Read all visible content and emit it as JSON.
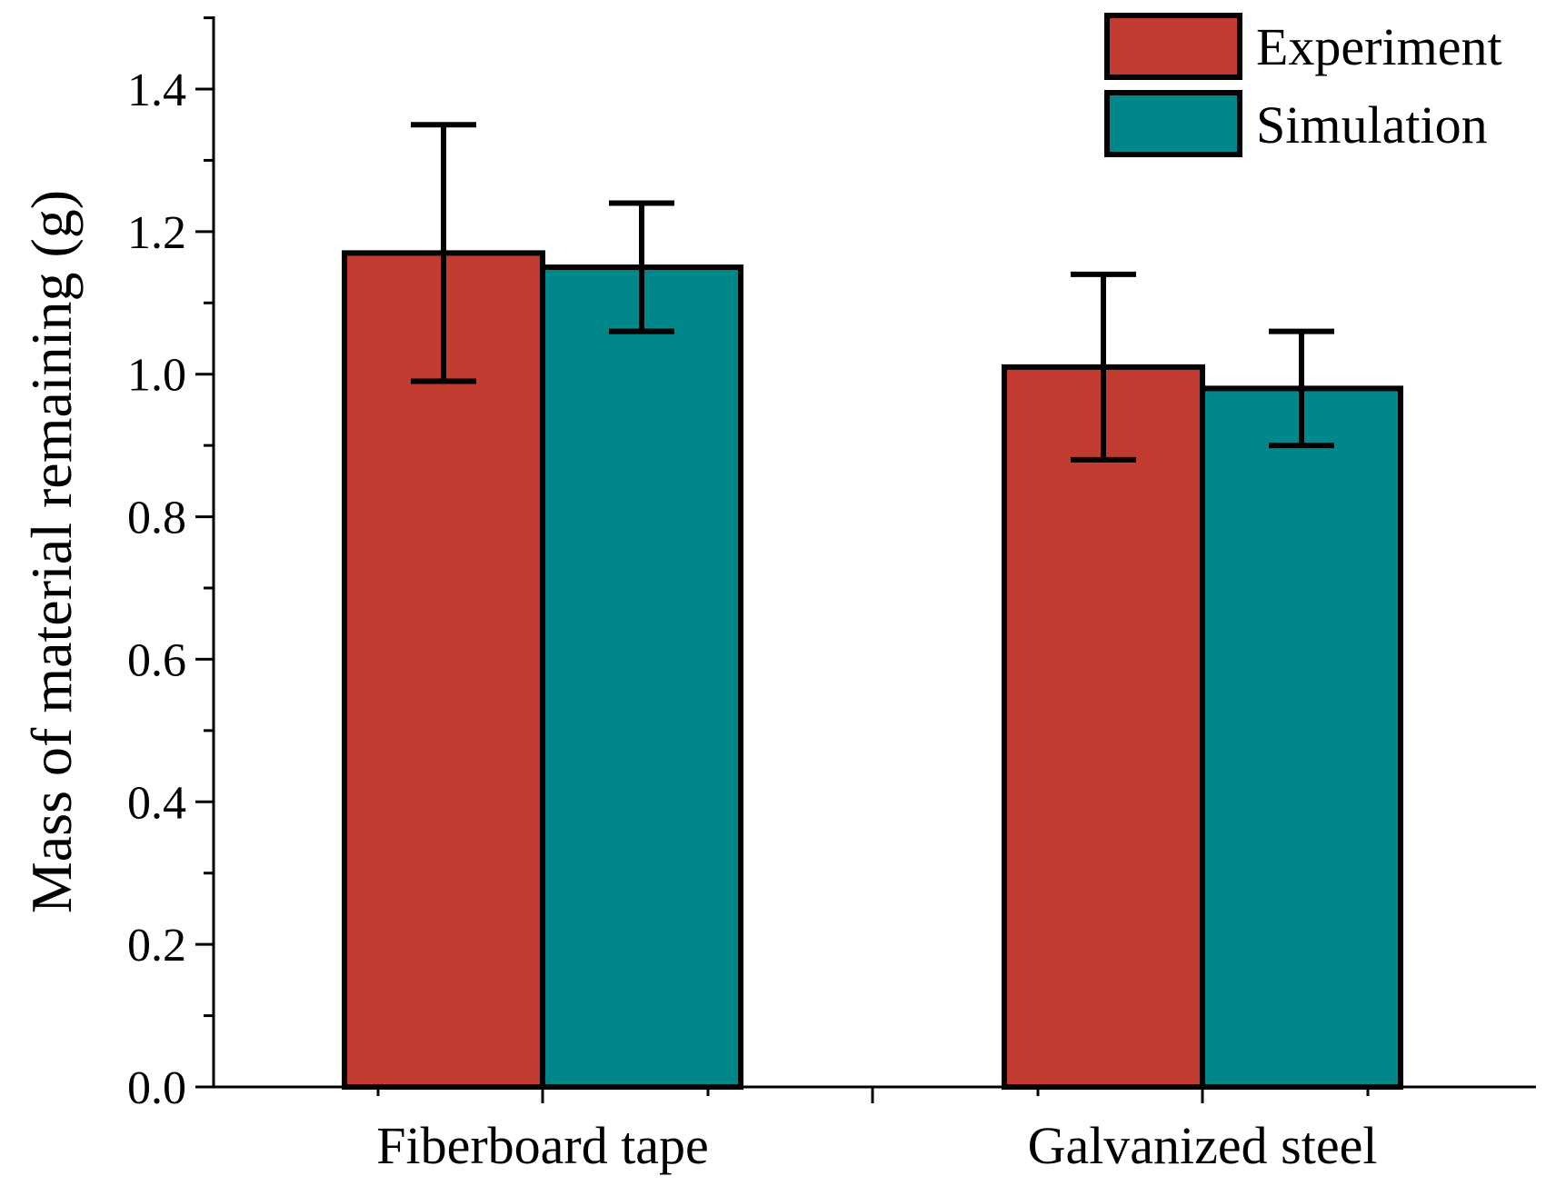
{
  "chart_data": {
    "type": "bar",
    "title": "",
    "xlabel": "",
    "ylabel": "Mass of material remaining (g)",
    "categories": [
      "Fiberboard tape",
      "Galvanized steel"
    ],
    "series": [
      {
        "name": "Experiment",
        "color": "#c23b31",
        "values": [
          1.17,
          1.01
        ],
        "err_low": [
          0.99,
          0.88
        ],
        "err_high": [
          1.35,
          1.14
        ]
      },
      {
        "name": "Simulation",
        "color": "#00878a",
        "values": [
          1.15,
          0.98
        ],
        "err_low": [
          1.06,
          0.9
        ],
        "err_high": [
          1.24,
          1.06
        ]
      }
    ],
    "ylim": [
      0,
      1.5
    ],
    "yticks": [
      0.0,
      0.2,
      0.4,
      0.6,
      0.8,
      1.0,
      1.2,
      1.4
    ],
    "ytick_labels": [
      "0.0",
      "0.2",
      "0.4",
      "0.6",
      "0.8",
      "1.0",
      "1.2",
      "1.4"
    ],
    "grid": false,
    "legend_position": "top-right"
  }
}
